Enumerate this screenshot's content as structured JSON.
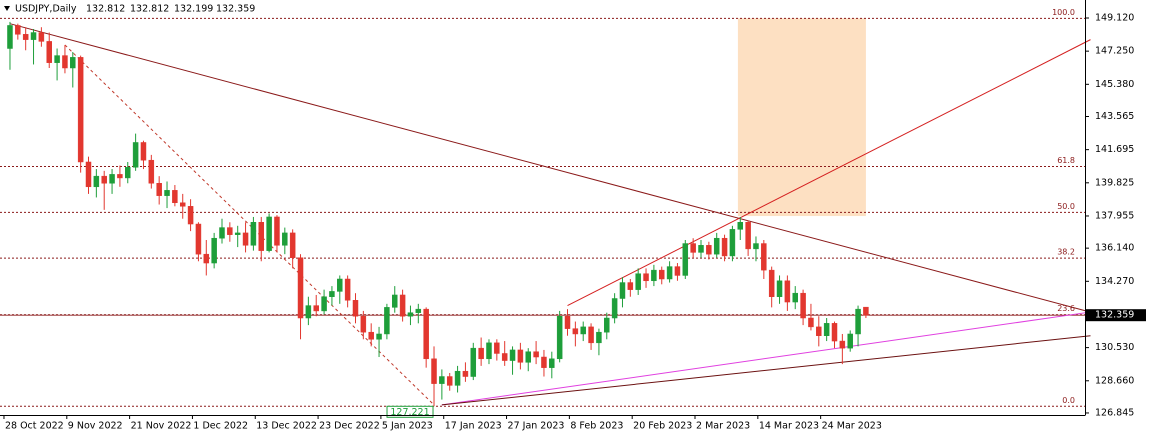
{
  "chart_data": {
    "type": "candlestick",
    "title": "USDJPY,Daily",
    "categories": [
      "28 Oct 2022",
      null,
      null,
      null,
      null,
      null,
      null,
      null,
      "9 Nov 2022",
      null,
      null,
      null,
      null,
      null,
      null,
      null,
      "21 Nov 2022",
      null,
      null,
      null,
      null,
      null,
      null,
      null,
      "1 Dec 2022",
      null,
      null,
      null,
      null,
      null,
      null,
      null,
      "13 Dec 2022",
      null,
      null,
      null,
      null,
      null,
      null,
      null,
      "23 Dec 2022",
      null,
      null,
      null,
      null,
      null,
      null,
      null,
      "5 Jan 2023",
      null,
      null,
      null,
      null,
      null,
      null,
      null,
      "17 Jan 2023",
      null,
      null,
      null,
      null,
      null,
      null,
      null,
      "27 Jan 2023",
      null,
      null,
      null,
      null,
      null,
      null,
      null,
      "8 Feb 2023",
      null,
      null,
      null,
      null,
      null,
      null,
      null,
      "20 Feb 2023",
      null,
      null,
      null,
      null,
      null,
      null,
      null,
      "2 Mar 2023",
      null,
      null,
      null,
      null,
      null,
      null,
      null,
      "14 Mar 2023",
      null,
      null,
      null,
      null,
      null,
      null,
      null,
      "24 Mar 2023",
      null,
      null,
      null,
      null,
      null
    ],
    "open": [
      147.4,
      148.7,
      148.2,
      147.9,
      148.3,
      147.8,
      146.6,
      147.0,
      146.3,
      146.9,
      141.0,
      139.6,
      140.2,
      139.8,
      140.3,
      140.1,
      140.7,
      142.1,
      141.1,
      139.8,
      139.1,
      139.4,
      138.7,
      138.5,
      137.5,
      135.8,
      135.3,
      136.7,
      137.3,
      136.9,
      137.0,
      136.3,
      137.6,
      136.0,
      137.9,
      136.3,
      137.0,
      135.6,
      132.2,
      132.9,
      132.6,
      133.4,
      133.7,
      134.4,
      133.2,
      132.3,
      131.4,
      131.0,
      131.3,
      132.8,
      133.5,
      132.3,
      132.5,
      132.7,
      129.9,
      128.5,
      128.9,
      128.4,
      129.2,
      128.9,
      130.5,
      129.9,
      130.8,
      130.2,
      129.8,
      130.4,
      129.7,
      130.3,
      130.0,
      129.4,
      129.9,
      132.3,
      131.6,
      131.3,
      131.7,
      130.8,
      131.4,
      132.2,
      133.3,
      134.2,
      133.8,
      134.7,
      134.3,
      134.9,
      134.4,
      135.1,
      134.6,
      136.4,
      135.9,
      136.3,
      135.8,
      136.7,
      135.7,
      137.2,
      137.6,
      136.1,
      136.4,
      134.9,
      133.4,
      134.3,
      133.1,
      133.6,
      132.2,
      131.7,
      131.2,
      131.9,
      130.9,
      130.5,
      131.3,
      132.812
    ],
    "high": [
      148.9,
      148.8,
      148.6,
      148.5,
      148.6,
      148.3,
      147.4,
      147.6,
      147.2,
      147.0,
      141.3,
      140.6,
      140.5,
      140.6,
      140.8,
      141.0,
      142.6,
      142.2,
      141.4,
      140.2,
      139.9,
      139.7,
      139.2,
      138.9,
      137.6,
      136.6,
      137.0,
      137.8,
      137.6,
      137.4,
      137.6,
      137.9,
      137.9,
      138.1,
      138.0,
      137.3,
      137.2,
      135.8,
      133.4,
      133.5,
      133.8,
      134.0,
      134.6,
      134.6,
      133.6,
      132.6,
      131.9,
      131.7,
      133.0,
      134.0,
      133.8,
      132.9,
      133.0,
      132.8,
      130.6,
      129.3,
      129.1,
      129.5,
      129.7,
      130.8,
      131.1,
      131.0,
      131.0,
      130.9,
      130.6,
      130.8,
      130.5,
      130.9,
      130.4,
      130.3,
      132.6,
      132.7,
      132.0,
      132.0,
      131.9,
      131.6,
      132.5,
      133.6,
      134.5,
      134.4,
      135.0,
      135.0,
      135.2,
      135.1,
      135.4,
      135.3,
      136.6,
      136.7,
      136.6,
      136.5,
      137.0,
      136.9,
      137.4,
      137.9,
      137.7,
      136.8,
      136.6,
      135.1,
      134.6,
      134.6,
      134.0,
      133.8,
      133.0,
      132.3,
      132.2,
      132.0,
      131.3,
      131.5,
      132.9,
      132.812
    ],
    "low": [
      146.2,
      147.9,
      147.3,
      146.5,
      147.5,
      146.3,
      145.6,
      146.0,
      145.2,
      140.4,
      139.2,
      139.0,
      138.3,
      139.2,
      139.6,
      139.8,
      140.5,
      140.6,
      139.5,
      138.6,
      138.4,
      138.5,
      137.8,
      137.1,
      135.4,
      134.6,
      135.0,
      136.4,
      136.5,
      136.2,
      135.9,
      136.0,
      135.4,
      135.9,
      135.9,
      135.8,
      135.0,
      131.0,
      131.8,
      132.3,
      132.4,
      132.9,
      133.0,
      132.8,
      131.9,
      131.0,
      130.6,
      130.0,
      131.0,
      132.5,
      132.0,
      131.8,
      131.9,
      129.4,
      127.221,
      127.6,
      128.1,
      128.0,
      128.6,
      128.7,
      129.5,
      129.6,
      129.8,
      129.5,
      129.0,
      129.3,
      129.2,
      129.6,
      128.9,
      128.8,
      129.7,
      131.2,
      130.6,
      130.9,
      130.4,
      130.1,
      131.0,
      131.9,
      132.8,
      133.4,
      133.5,
      133.9,
      134.0,
      134.1,
      134.2,
      134.3,
      134.4,
      135.6,
      135.6,
      135.5,
      135.6,
      135.4,
      135.4,
      136.6,
      135.7,
      135.4,
      134.4,
      132.8,
      133.0,
      132.6,
      132.7,
      131.8,
      131.5,
      130.6,
      130.9,
      130.5,
      129.6,
      130.3,
      130.6,
      132.199
    ],
    "close": [
      148.7,
      148.2,
      147.9,
      148.3,
      147.8,
      146.6,
      147.0,
      146.3,
      146.9,
      141.0,
      139.6,
      140.2,
      139.8,
      140.3,
      140.1,
      140.7,
      142.1,
      141.1,
      139.8,
      139.1,
      139.4,
      138.7,
      138.5,
      137.5,
      135.8,
      135.3,
      136.7,
      137.3,
      136.9,
      137.0,
      136.3,
      137.6,
      136.0,
      137.9,
      136.3,
      137.0,
      135.6,
      132.2,
      132.9,
      132.6,
      133.4,
      133.7,
      134.4,
      133.2,
      132.3,
      131.4,
      131.0,
      131.3,
      132.8,
      133.5,
      132.3,
      132.5,
      132.7,
      129.9,
      128.5,
      128.9,
      128.4,
      129.2,
      128.9,
      130.5,
      129.9,
      130.8,
      130.2,
      129.8,
      130.4,
      129.7,
      130.3,
      130.0,
      129.4,
      129.9,
      132.3,
      131.6,
      131.3,
      131.7,
      130.8,
      131.4,
      132.2,
      133.3,
      134.2,
      133.8,
      134.7,
      134.3,
      134.9,
      134.4,
      135.1,
      134.6,
      136.4,
      135.9,
      136.3,
      135.8,
      136.7,
      135.7,
      137.2,
      137.6,
      136.1,
      136.4,
      134.9,
      133.4,
      134.3,
      133.1,
      133.6,
      132.2,
      131.7,
      131.2,
      131.9,
      130.9,
      130.5,
      131.3,
      132.7,
      132.359
    ],
    "up_color": "#1e9e3a",
    "down_color": "#e2372f",
    "xlim": [
      -1.27,
      136.9
    ],
    "ylim": [
      126.73,
      150.135
    ],
    "yticks": [
      {
        "value": 149.12,
        "label": "149.120"
      },
      {
        "value": 147.25,
        "label": "147.250"
      },
      {
        "value": 145.38,
        "label": "145.380"
      },
      {
        "value": 143.565,
        "label": "143.565"
      },
      {
        "value": 141.695,
        "label": "141.695"
      },
      {
        "value": 139.825,
        "label": "139.825"
      },
      {
        "value": 137.955,
        "label": "137.955"
      },
      {
        "value": 136.14,
        "label": "136.140"
      },
      {
        "value": 134.27,
        "label": "134.270"
      },
      {
        "value": 130.53,
        "label": "130.530"
      },
      {
        "value": 128.66,
        "label": "128.660"
      },
      {
        "value": 126.845,
        "label": "126.845"
      }
    ],
    "fibonacci": {
      "high": 149.1,
      "low": 127.221,
      "color": "#8b1a1a",
      "levels": [
        {
          "value": 100,
          "label": "100.0"
        },
        {
          "value": 61.8,
          "label": "61.8"
        },
        {
          "value": 50,
          "label": "50.0"
        },
        {
          "value": 38.2,
          "label": "38.2"
        },
        {
          "value": 23.6,
          "label": "23.6"
        },
        {
          "value": 0,
          "label": "0.0"
        }
      ]
    },
    "zone": {
      "x": [
        92.7,
        109
      ],
      "y": [
        137.95,
        149.1
      ],
      "color": "#fde0c2"
    },
    "lines": [
      {
        "x": [
          0,
          137
        ],
        "y": [
          148.8,
          132.6
        ],
        "color": "#8b1a1a",
        "dash": false
      },
      {
        "x": [
          7,
          54
        ],
        "y": [
          147.6,
          127.3
        ],
        "color": "#c0392b",
        "dash": true
      },
      {
        "x": [
          71,
          137.6
        ],
        "y": [
          132.9,
          147.9
        ],
        "color": "#d42020",
        "dash": false
      },
      {
        "x": [
          55,
          137
        ],
        "y": [
          127.3,
          132.5
        ],
        "color": "#e040e0",
        "dash": false
      },
      {
        "x": [
          55,
          137.6
        ],
        "y": [
          127.3,
          131.2
        ],
        "color": "#6b1010",
        "dash": false
      }
    ]
  }
}
